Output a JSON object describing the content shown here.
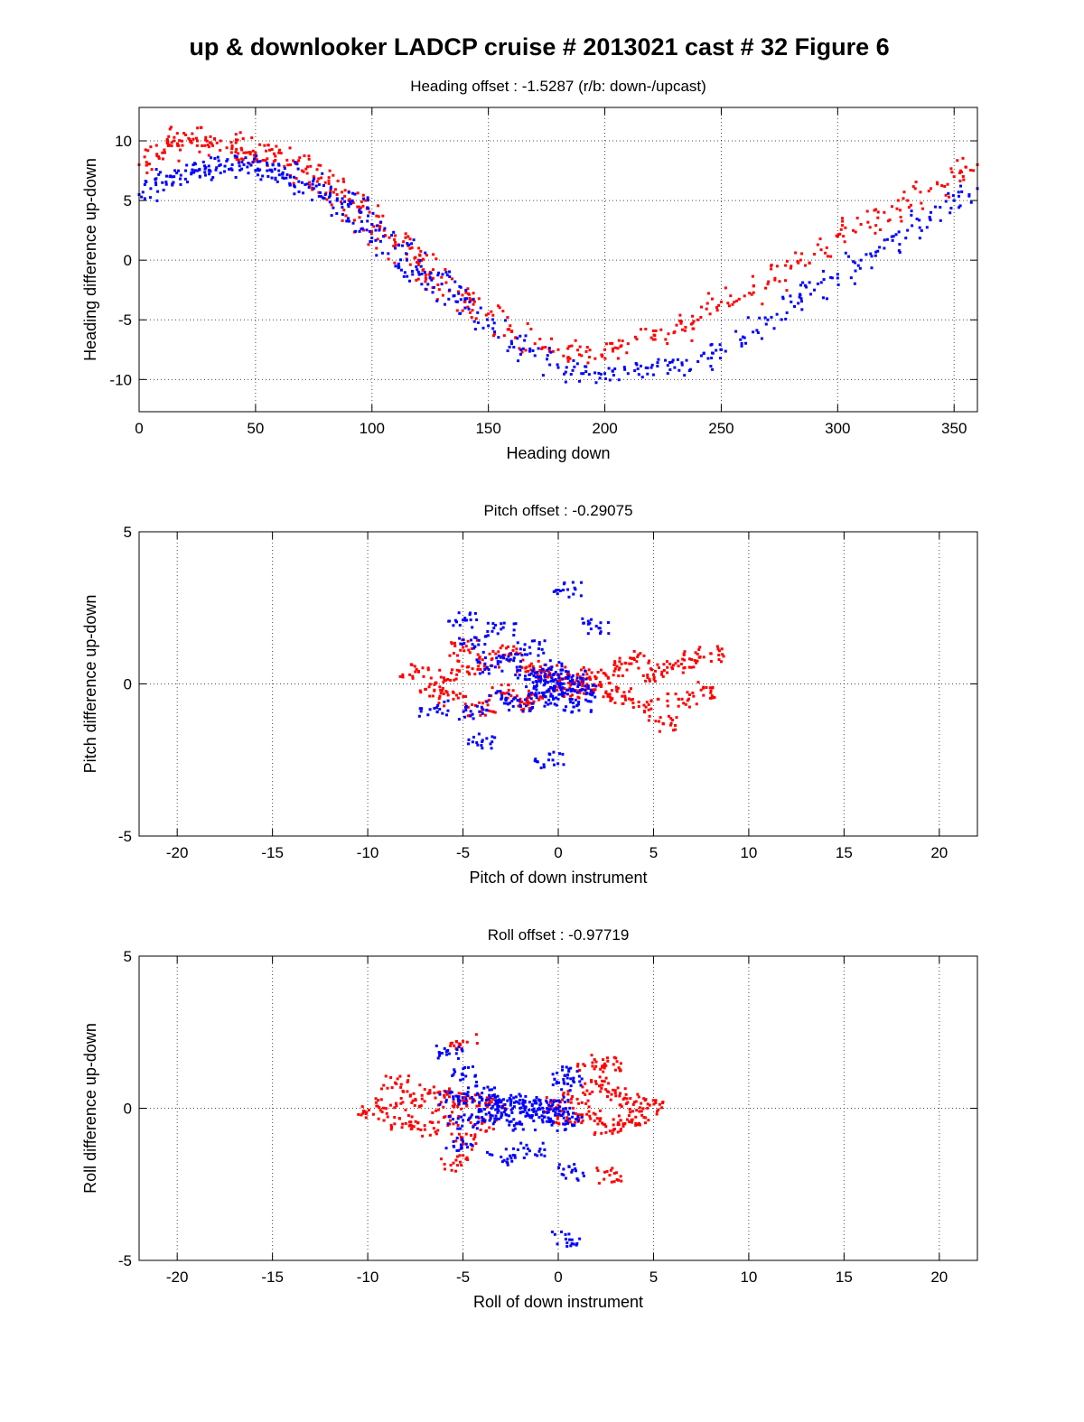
{
  "figure": {
    "title": "up & downlooker LADCP cruise # 2013021 cast # 32 Figure 6"
  },
  "colors": {
    "downcast": "#ff0000",
    "upcast": "#0000ff",
    "axes": "#000000",
    "grid": "#000000"
  },
  "chart_data": [
    {
      "type": "scatter",
      "title": "Heading offset : -1.5287 (r/b: down-/upcast)",
      "xlabel": "Heading down",
      "ylabel": "Heading difference up-down",
      "xlim": [
        0,
        360
      ],
      "ylim": [
        -12.7,
        12.8
      ],
      "xticks": [
        0,
        50,
        100,
        150,
        200,
        250,
        300,
        350
      ],
      "yticks": [
        -10,
        -5,
        0,
        5,
        10
      ],
      "grid": true,
      "series": [
        {
          "color": "red",
          "points": [
            [
              0,
              8
            ],
            [
              5,
              9.5
            ],
            [
              10,
              9
            ],
            [
              15,
              10
            ],
            [
              20,
              10.5
            ],
            [
              25,
              10
            ],
            [
              30,
              9.5
            ],
            [
              35,
              10
            ],
            [
              40,
              9.5
            ],
            [
              45,
              9
            ],
            [
              50,
              9
            ],
            [
              55,
              8.5
            ],
            [
              60,
              9
            ],
            [
              65,
              8
            ],
            [
              70,
              7.5
            ],
            [
              75,
              7
            ],
            [
              80,
              6.5
            ],
            [
              85,
              5.5
            ],
            [
              90,
              5
            ],
            [
              95,
              4
            ],
            [
              100,
              3
            ],
            [
              105,
              2
            ],
            [
              110,
              1.5
            ],
            [
              115,
              0.5
            ],
            [
              120,
              0
            ],
            [
              125,
              -1
            ],
            [
              130,
              -2
            ],
            [
              135,
              -3
            ],
            [
              140,
              -3.5
            ],
            [
              150,
              -4.5
            ],
            [
              160,
              -6
            ],
            [
              170,
              -7
            ],
            [
              180,
              -7.5
            ],
            [
              190,
              -8
            ],
            [
              200,
              -7.5
            ],
            [
              210,
              -7
            ],
            [
              220,
              -6.5
            ],
            [
              230,
              -6
            ],
            [
              240,
              -5
            ],
            [
              250,
              -3.5
            ],
            [
              260,
              -3
            ],
            [
              270,
              -2
            ],
            [
              280,
              -0.5
            ],
            [
              290,
              0.5
            ],
            [
              300,
              2
            ],
            [
              310,
              3
            ],
            [
              320,
              4
            ],
            [
              330,
              5
            ],
            [
              340,
              6
            ],
            [
              350,
              7
            ],
            [
              360,
              8
            ]
          ]
        },
        {
          "color": "blue",
          "points": [
            [
              0,
              5.5
            ],
            [
              5,
              6
            ],
            [
              10,
              6.5
            ],
            [
              15,
              7
            ],
            [
              20,
              7.5
            ],
            [
              25,
              7.5
            ],
            [
              30,
              7.5
            ],
            [
              35,
              8
            ],
            [
              40,
              8
            ],
            [
              45,
              8
            ],
            [
              50,
              7.5
            ],
            [
              55,
              7.5
            ],
            [
              60,
              7.5
            ],
            [
              65,
              7
            ],
            [
              70,
              6.5
            ],
            [
              75,
              6
            ],
            [
              80,
              5.5
            ],
            [
              85,
              5
            ],
            [
              90,
              4.5
            ],
            [
              95,
              4
            ],
            [
              100,
              3
            ],
            [
              105,
              2
            ],
            [
              110,
              1
            ],
            [
              115,
              0
            ],
            [
              120,
              -1
            ],
            [
              125,
              -1.5
            ],
            [
              130,
              -2
            ],
            [
              135,
              -3
            ],
            [
              140,
              -4
            ],
            [
              150,
              -5.5
            ],
            [
              160,
              -7
            ],
            [
              170,
              -8
            ],
            [
              180,
              -9
            ],
            [
              190,
              -9.5
            ],
            [
              200,
              -9.5
            ],
            [
              210,
              -9.5
            ],
            [
              220,
              -9
            ],
            [
              230,
              -9
            ],
            [
              240,
              -8.5
            ],
            [
              250,
              -7.5
            ],
            [
              260,
              -6.5
            ],
            [
              270,
              -5
            ],
            [
              280,
              -3.5
            ],
            [
              290,
              -2.5
            ],
            [
              300,
              -1.5
            ],
            [
              310,
              0
            ],
            [
              320,
              1
            ],
            [
              330,
              2.5
            ],
            [
              340,
              4
            ],
            [
              350,
              5
            ],
            [
              360,
              6
            ]
          ]
        }
      ]
    },
    {
      "type": "scatter",
      "title": "Pitch offset : -0.29075",
      "xlabel": "Pitch of down instrument",
      "ylabel": "Pitch difference up-down",
      "xlim": [
        -22,
        22
      ],
      "ylim": [
        -5,
        5
      ],
      "xticks": [
        -20,
        -15,
        -10,
        -5,
        0,
        5,
        10,
        15,
        20
      ],
      "yticks": [
        -5,
        0,
        5
      ],
      "grid": true,
      "series": [
        {
          "color": "red",
          "points": [
            [
              -7.5,
              0.4
            ],
            [
              -6.5,
              -0.2
            ],
            [
              -6,
              0.2
            ],
            [
              -5.5,
              -0.5
            ],
            [
              -5,
              1.2
            ],
            [
              -4.5,
              0.5
            ],
            [
              -4,
              -0.8
            ],
            [
              -3.5,
              0.8
            ],
            [
              -3,
              -0.3
            ],
            [
              -2.5,
              1
            ],
            [
              -2,
              -0.6
            ],
            [
              -1.5,
              0.6
            ],
            [
              -1,
              -0.5
            ],
            [
              -0.5,
              0.4
            ],
            [
              0,
              0.1
            ],
            [
              0.5,
              -0.2
            ],
            [
              1,
              0.3
            ],
            [
              1.5,
              -0.1
            ],
            [
              2,
              0.2
            ],
            [
              2.5,
              -0.3
            ],
            [
              3,
              0.5
            ],
            [
              3.5,
              -0.4
            ],
            [
              4,
              0.8
            ],
            [
              4.5,
              -0.7
            ],
            [
              5,
              0.3
            ],
            [
              5.5,
              -1.3
            ],
            [
              6,
              0.5
            ],
            [
              6.5,
              -0.5
            ],
            [
              7,
              0.8
            ],
            [
              7.5,
              -0.2
            ],
            [
              8,
              1
            ]
          ]
        },
        {
          "color": "blue",
          "points": [
            [
              -6.5,
              -0.8
            ],
            [
              -5,
              2.1
            ],
            [
              -4.5,
              -1
            ],
            [
              -4.5,
              1.3
            ],
            [
              -4,
              -1.9
            ],
            [
              -3.5,
              0.6
            ],
            [
              -3,
              -0.5
            ],
            [
              -2.5,
              0.8
            ],
            [
              -2,
              -0.7
            ],
            [
              -1.5,
              1.2
            ],
            [
              -1.5,
              0.3
            ],
            [
              -1,
              -0.3
            ],
            [
              -1,
              0.1
            ],
            [
              -0.5,
              0.5
            ],
            [
              -0.5,
              -0.2
            ],
            [
              0,
              0
            ],
            [
              0,
              -0.5
            ],
            [
              0,
              0.3
            ],
            [
              0.5,
              -0.2
            ],
            [
              0.5,
              3.1
            ],
            [
              -0.5,
              -2.5
            ],
            [
              1,
              0.2
            ],
            [
              1.5,
              -0.3
            ],
            [
              2,
              1.9
            ],
            [
              -3,
              1.8
            ],
            [
              1,
              -0.7
            ]
          ]
        }
      ]
    },
    {
      "type": "scatter",
      "title": "Roll offset : -0.97719",
      "xlabel": "Roll of down instrument",
      "ylabel": "Roll difference up-down",
      "xlim": [
        -22,
        22
      ],
      "ylim": [
        -5,
        5
      ],
      "xticks": [
        -20,
        -15,
        -10,
        -5,
        0,
        5,
        10,
        15,
        20
      ],
      "yticks": [
        -5,
        0,
        5
      ],
      "grid": true,
      "series": [
        {
          "color": "red",
          "points": [
            [
              -9.7,
              -0.2
            ],
            [
              -8.8,
              0.1
            ],
            [
              -8.5,
              0.8
            ],
            [
              -8,
              -0.5
            ],
            [
              -7.5,
              0.3
            ],
            [
              -7,
              -0.7
            ],
            [
              -6.5,
              0.5
            ],
            [
              -6,
              -0.3
            ],
            [
              -5.5,
              0.2
            ],
            [
              -5,
              -1.1
            ],
            [
              -5,
              2.2
            ],
            [
              -4.5,
              0.3
            ],
            [
              -4,
              -0.5
            ],
            [
              -3.5,
              0.2
            ],
            [
              0,
              0.1
            ],
            [
              0.5,
              -0.4
            ],
            [
              1,
              0.3
            ],
            [
              1.5,
              -0.2
            ],
            [
              2,
              0.8
            ],
            [
              2.5,
              -0.6
            ],
            [
              3,
              0.5
            ],
            [
              3.5,
              -0.5
            ],
            [
              4,
              0.2
            ],
            [
              4.5,
              -0.3
            ],
            [
              4.8,
              0.1
            ],
            [
              2.7,
              -2.2
            ],
            [
              -5.5,
              -1.8
            ],
            [
              1.8,
              1.5
            ],
            [
              2.5,
              1.4
            ]
          ]
        },
        {
          "color": "blue",
          "points": [
            [
              -5.8,
              1.9
            ],
            [
              -5.5,
              0.3
            ],
            [
              -5,
              -0.4
            ],
            [
              -5,
              1.1
            ],
            [
              -4.5,
              0.2
            ],
            [
              -4,
              -0.3
            ],
            [
              -4,
              0.5
            ],
            [
              -3.5,
              0
            ],
            [
              -3,
              0.2
            ],
            [
              -3,
              -0.3
            ],
            [
              -2.5,
              0.1
            ],
            [
              -2,
              0
            ],
            [
              -2,
              -0.5
            ],
            [
              -1.5,
              0.2
            ],
            [
              -1,
              0
            ],
            [
              -1,
              -0.3
            ],
            [
              -0.5,
              0.1
            ],
            [
              0,
              0
            ],
            [
              0,
              -0.2
            ],
            [
              0.5,
              0.8
            ],
            [
              0.5,
              -0.5
            ],
            [
              -3,
              -1.6
            ],
            [
              0.7,
              -2.1
            ],
            [
              0.4,
              -4.3
            ],
            [
              -5.1,
              -1.2
            ],
            [
              -1.5,
              -1.4
            ],
            [
              0.5,
              1.1
            ]
          ]
        }
      ]
    }
  ]
}
